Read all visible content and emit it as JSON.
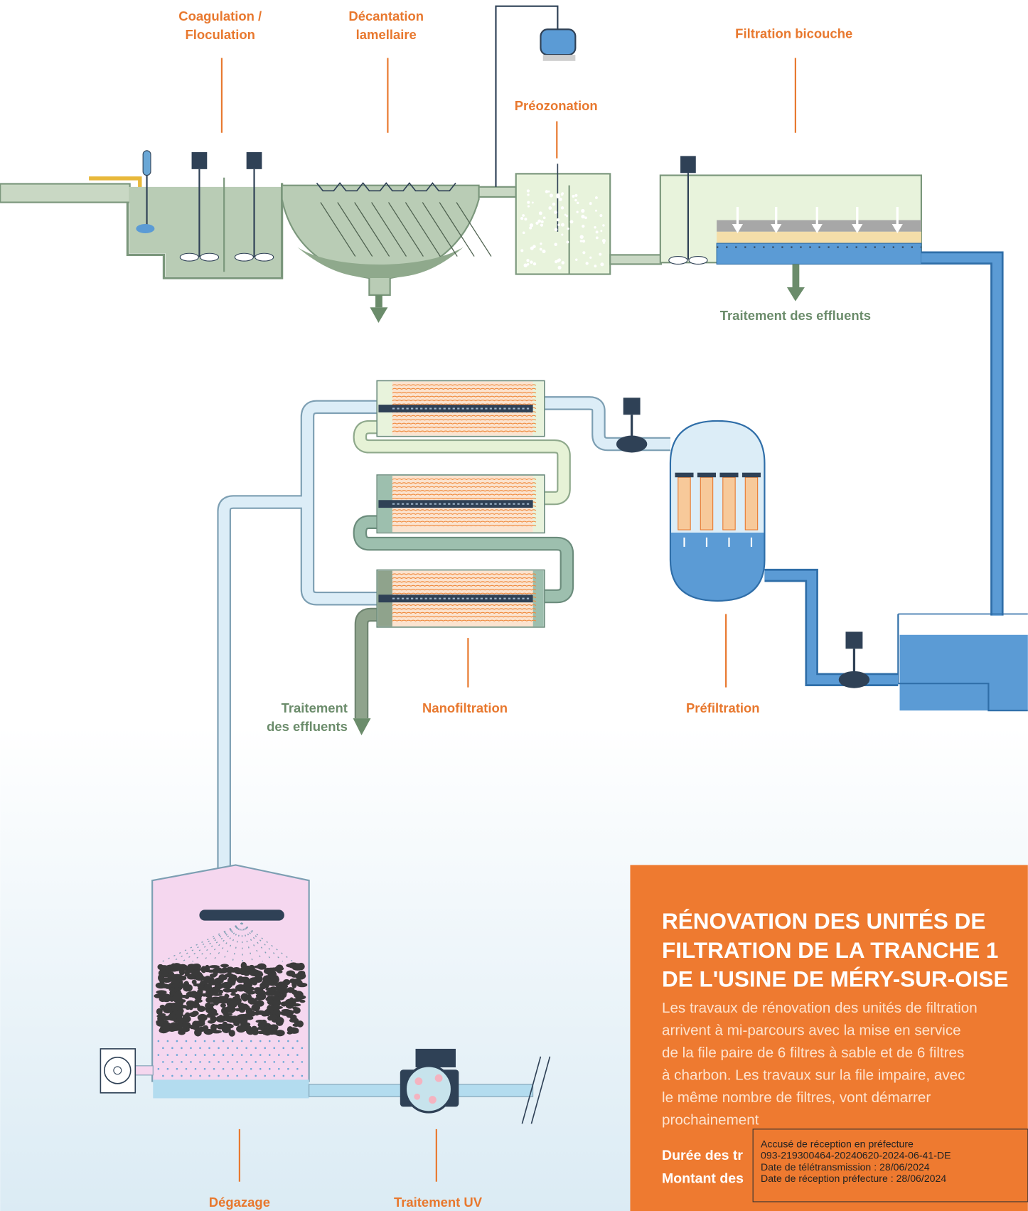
{
  "labels": {
    "coagulation": [
      "Coagulation /",
      "Floculation"
    ],
    "decantation": [
      "Décantation",
      "lamellaire"
    ],
    "preozonation": [
      "Préozonation"
    ],
    "filtration": [
      "Filtration bicouche"
    ],
    "effluents_top": [
      "Traitement des effluents"
    ],
    "effluents_mid": [
      "Traitement",
      "des effluents"
    ],
    "nanofiltration": [
      "Nanofiltration"
    ],
    "prefiltration": [
      "Préfiltration"
    ],
    "degazage": [
      "Dégazage"
    ],
    "uv": [
      "Traitement UV"
    ]
  },
  "info": {
    "title": [
      "RÉNOVATION DES UNITÉS DE",
      "FILTRATION DE LA TRANCHE 1",
      "DE L'USINE DE MÉRY-SUR-OISE"
    ],
    "body": [
      "Les travaux de rénovation des unités de filtration",
      "arrivent à mi-parcours avec la mise en service",
      "de la file paire de 6 filtres à sable et de 6 filtres",
      "à charbon. Les travaux sur la file impaire, avec",
      "le même nombre de filtres, vont démarrer",
      "prochainement"
    ],
    "details": [
      "Durée des tr",
      "Montant des"
    ]
  },
  "stamp": {
    "lines": [
      "Accusé de réception en préfecture",
      "093-219300464-20240620-2024-06-41-DE",
      "Date de télétransmission : 28/06/2024",
      "Date de réception préfecture : 28/06/2024"
    ]
  }
}
